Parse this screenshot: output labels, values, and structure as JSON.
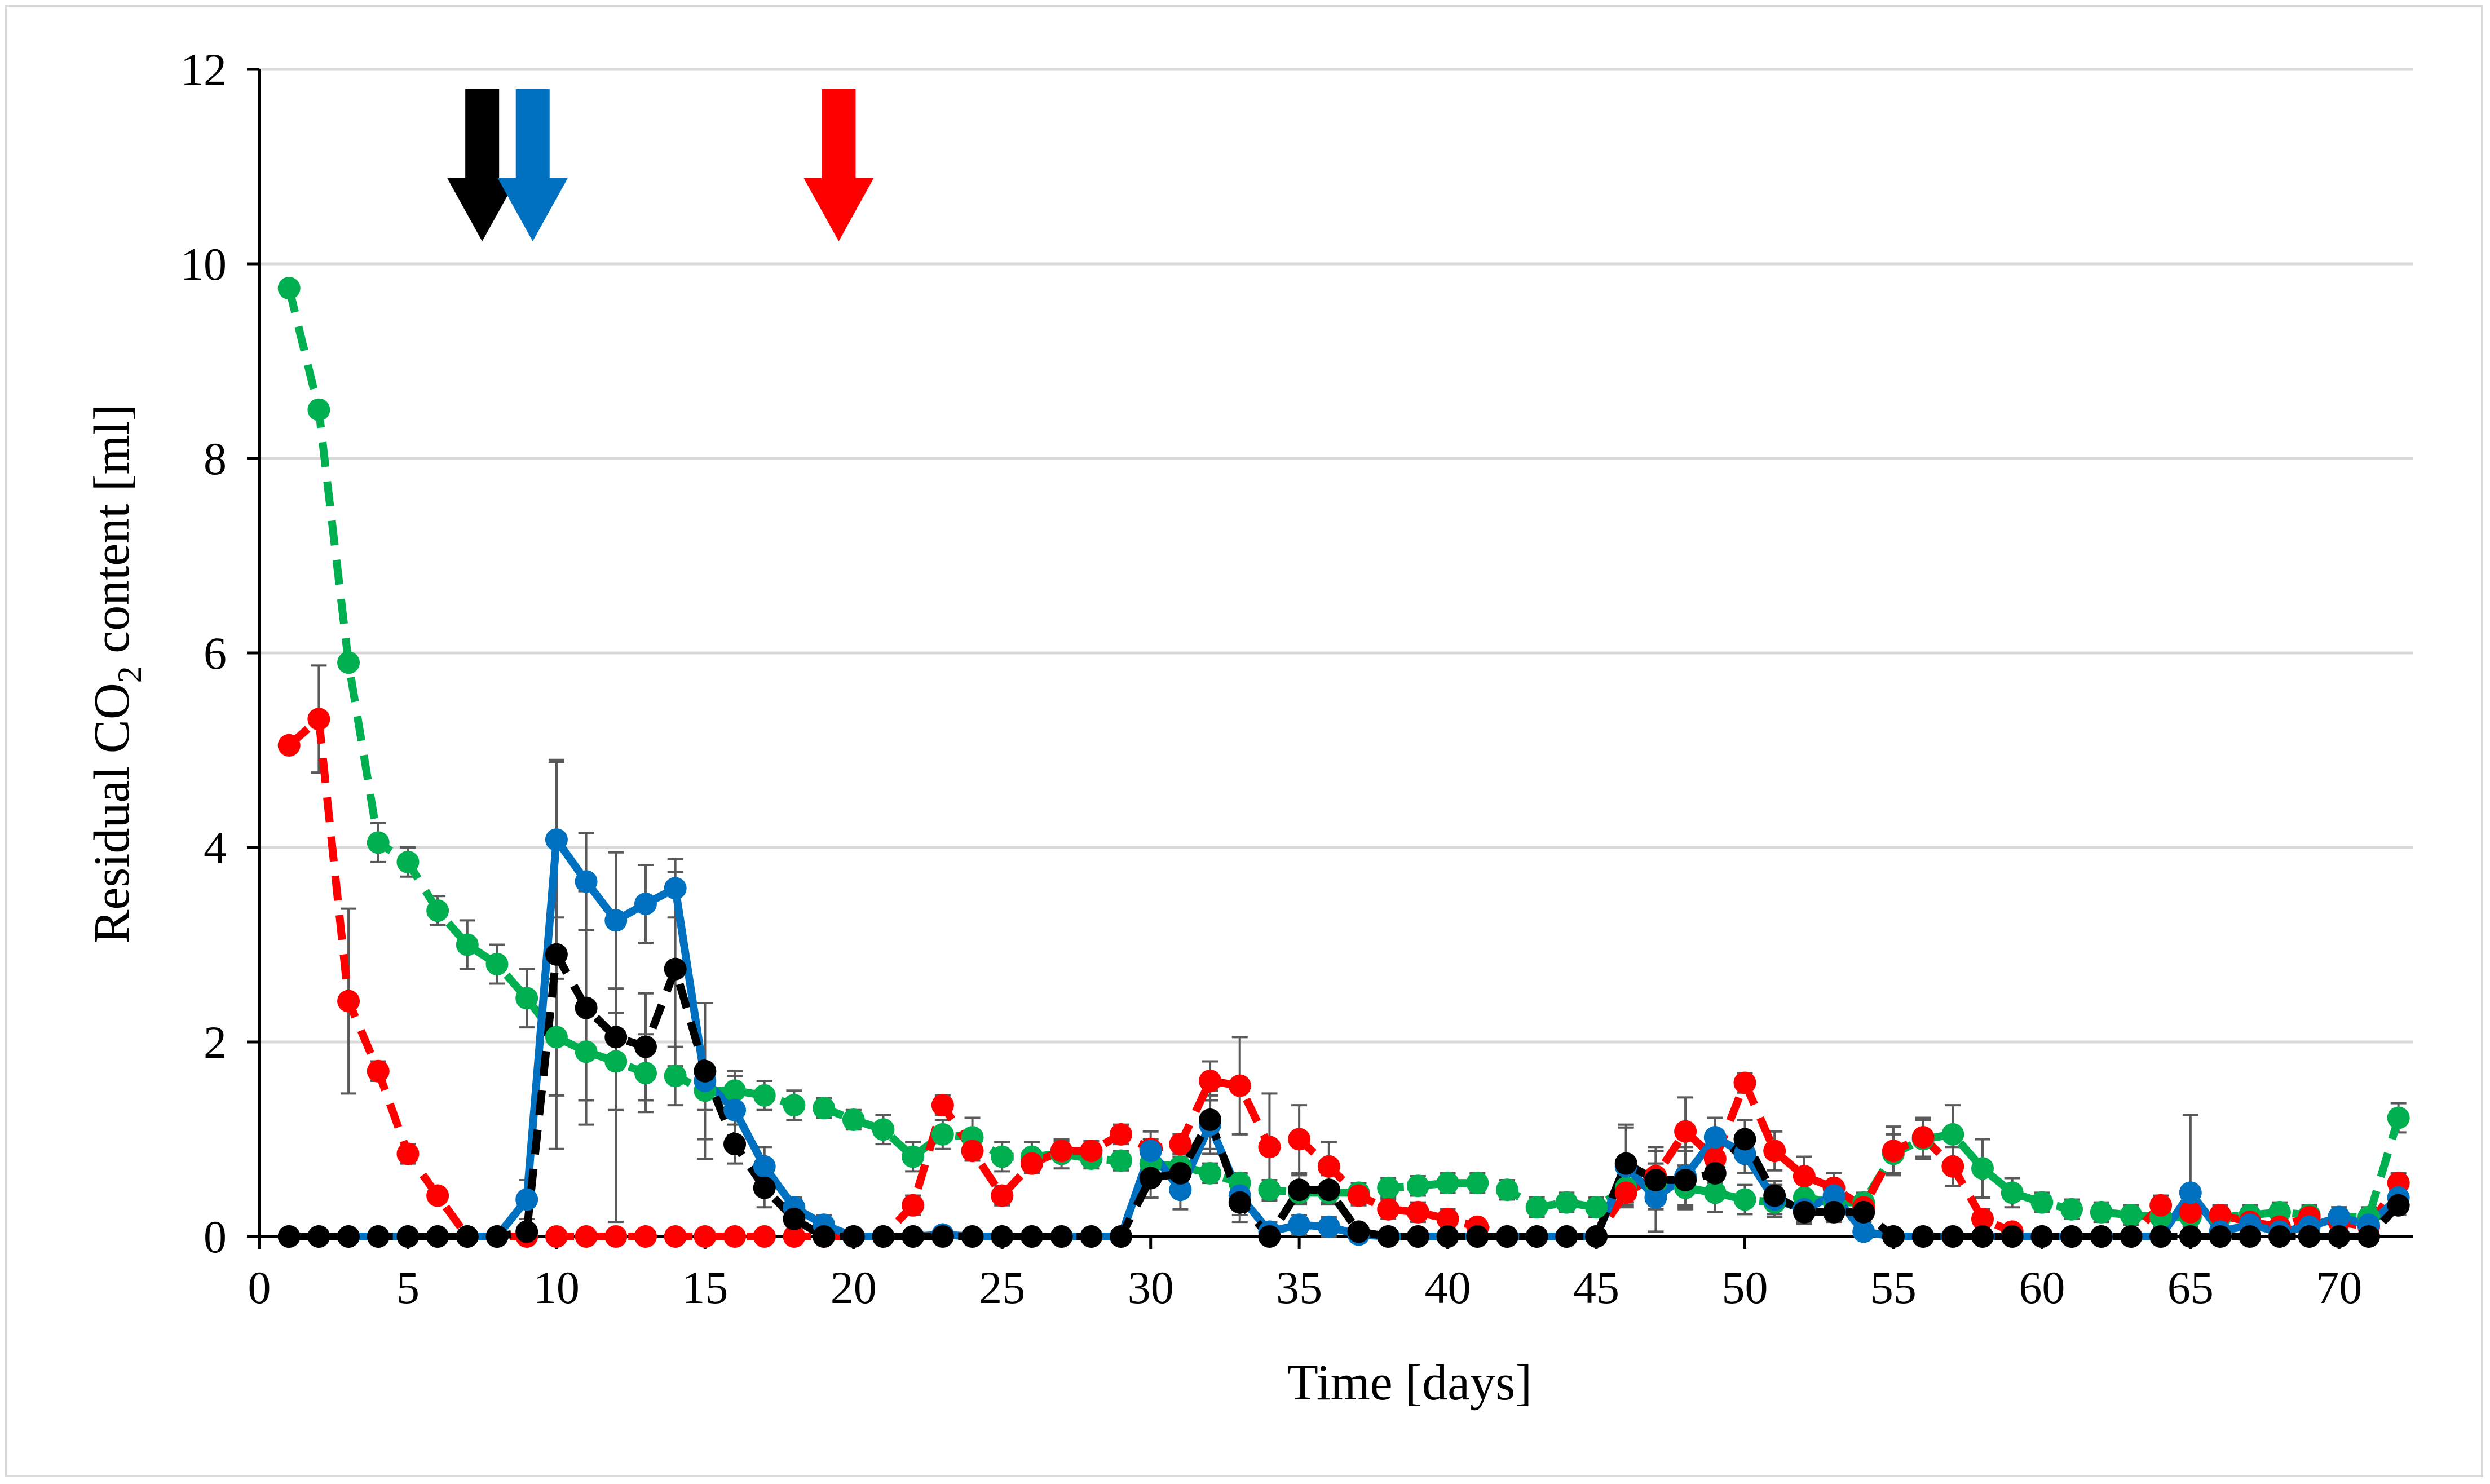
{
  "chart_data": {
    "type": "line",
    "title": "",
    "xlabel": "Time [days]",
    "ylabel_parts": {
      "prefix": "Residual CO",
      "subscript": "2",
      "suffix": " content [ml]"
    },
    "xlim": [
      0,
      72.5
    ],
    "ylim": [
      0,
      12
    ],
    "x_ticks": [
      0,
      5,
      10,
      15,
      20,
      25,
      30,
      35,
      40,
      45,
      50,
      55,
      60,
      65,
      70
    ],
    "y_ticks": [
      0,
      2,
      4,
      6,
      8,
      10,
      12
    ],
    "grid": "horizontal",
    "annotations": [
      {
        "type": "arrow",
        "x_day": 7.5,
        "color": "#000000",
        "name": "black-arrow"
      },
      {
        "type": "arrow",
        "x_day": 9.2,
        "color": "#0070c0",
        "name": "blue-arrow"
      },
      {
        "type": "arrow",
        "x_day": 19.5,
        "color": "#ff0000",
        "name": "red-arrow"
      }
    ],
    "series": [
      {
        "name": "green",
        "color": "#00b050",
        "dash": true,
        "x": [
          1,
          2,
          3,
          4,
          5,
          6,
          7,
          8,
          9,
          10,
          11,
          12,
          13,
          14,
          15,
          16,
          17,
          18,
          19,
          20,
          21,
          22,
          23,
          24,
          25,
          26,
          27,
          28,
          29,
          30,
          31,
          32,
          33,
          34,
          35,
          36,
          37,
          38,
          39,
          40,
          41,
          42,
          43,
          44,
          45,
          46,
          47,
          48,
          49,
          50,
          51,
          52,
          53,
          54,
          55,
          56,
          57,
          58,
          59,
          60,
          61,
          62,
          63,
          64,
          65,
          66,
          67,
          68,
          69,
          70,
          71,
          72
        ],
        "values": [
          9.75,
          8.5,
          5.9,
          4.05,
          3.85,
          3.35,
          3.0,
          2.8,
          2.45,
          2.05,
          1.9,
          1.8,
          1.68,
          1.65,
          1.5,
          1.5,
          1.45,
          1.35,
          1.32,
          1.2,
          1.1,
          0.82,
          1.05,
          1.02,
          0.82,
          0.82,
          0.85,
          0.8,
          0.78,
          0.75,
          0.72,
          0.65,
          0.55,
          0.48,
          0.45,
          0.45,
          0.45,
          0.5,
          0.52,
          0.55,
          0.55,
          0.48,
          0.3,
          0.35,
          0.3,
          0.5,
          0.55,
          0.5,
          0.45,
          0.38,
          0.35,
          0.4,
          0.35,
          0.35,
          0.85,
          1.0,
          1.05,
          0.7,
          0.45,
          0.35,
          0.28,
          0.25,
          0.22,
          0.2,
          0.2,
          0.2,
          0.22,
          0.25,
          0.22,
          0.2,
          0.2,
          1.22
        ],
        "errors": [
          0,
          0,
          0,
          0.2,
          0.15,
          0.15,
          0.25,
          0.2,
          0.3,
          0.6,
          0.5,
          0.5,
          0.4,
          0.3,
          0.2,
          0.15,
          0.15,
          0.15,
          0.1,
          0.1,
          0.15,
          0.15,
          0.15,
          0.2,
          0.15,
          0.15,
          0.15,
          0.1,
          0.1,
          0.1,
          0.1,
          0.1,
          0.1,
          0.1,
          0.1,
          0.1,
          0.1,
          0.1,
          0.1,
          0.1,
          0.1,
          0.1,
          0.1,
          0.1,
          0.1,
          0.2,
          0.2,
          0.2,
          0.2,
          0.15,
          0.15,
          0.15,
          0.15,
          0.1,
          0.2,
          0.2,
          0.3,
          0.3,
          0.15,
          0.1,
          0.1,
          0.1,
          0.1,
          0.1,
          0.1,
          0.1,
          0.1,
          0.1,
          0.1,
          0.1,
          0.1,
          0.15
        ]
      },
      {
        "name": "red",
        "color": "#ff0000",
        "dash": true,
        "x": [
          1,
          2,
          3,
          4,
          5,
          6,
          7,
          8,
          9,
          10,
          11,
          12,
          13,
          14,
          15,
          16,
          17,
          18,
          19,
          20,
          21,
          22,
          23,
          24,
          25,
          26,
          27,
          28,
          29,
          30,
          31,
          32,
          33,
          34,
          35,
          36,
          37,
          38,
          39,
          40,
          41,
          42,
          43,
          44,
          45,
          46,
          47,
          48,
          49,
          50,
          51,
          52,
          53,
          54,
          55,
          56,
          57,
          58,
          59,
          60,
          61,
          62,
          63,
          64,
          65,
          66,
          67,
          68,
          69,
          70,
          71,
          72
        ],
        "values": [
          5.05,
          5.32,
          2.42,
          1.7,
          0.85,
          0.42,
          0,
          0,
          0,
          0,
          0,
          0,
          0,
          0,
          0,
          0,
          0,
          0,
          0,
          0,
          0,
          0.32,
          1.35,
          0.88,
          0.42,
          0.75,
          0.88,
          0.88,
          1.05,
          0.9,
          0.95,
          1.6,
          1.55,
          0.92,
          1.0,
          0.72,
          0.42,
          0.28,
          0.25,
          0.18,
          0.1,
          0,
          0,
          0,
          0,
          0.45,
          0.62,
          1.08,
          0.8,
          1.58,
          0.88,
          0.62,
          0.5,
          0.3,
          0.88,
          1.02,
          0.72,
          0.18,
          0.05,
          0,
          0,
          0,
          0,
          0.32,
          0.25,
          0.22,
          0.15,
          0.1,
          0.2,
          0.15,
          0.1,
          0.55
        ],
        "errors": [
          0,
          0.55,
          0.95,
          0.1,
          0.1,
          0.05,
          0,
          0,
          0,
          0,
          0,
          0,
          0,
          0,
          0,
          0,
          0,
          0,
          0,
          0,
          0,
          0.1,
          0.1,
          0.1,
          0.1,
          0.1,
          0.1,
          0.1,
          0.1,
          0.1,
          0.1,
          0.2,
          0.5,
          0.55,
          0.35,
          0.25,
          0.1,
          0.1,
          0.1,
          0.1,
          0.05,
          0,
          0,
          0,
          0,
          0.1,
          0.3,
          0.35,
          0.25,
          0.1,
          0.2,
          0.2,
          0.15,
          0.1,
          0.25,
          0.2,
          0.2,
          0.1,
          0.05,
          0,
          0,
          0,
          0,
          0.1,
          0.1,
          0.1,
          0.1,
          0.1,
          0.1,
          0.1,
          0.1,
          0.1
        ]
      },
      {
        "name": "blue",
        "color": "#0070c0",
        "dash": false,
        "x": [
          1,
          2,
          3,
          4,
          5,
          6,
          7,
          8,
          9,
          10,
          11,
          12,
          13,
          14,
          15,
          16,
          17,
          18,
          19,
          20,
          21,
          22,
          23,
          24,
          25,
          26,
          27,
          28,
          29,
          30,
          31,
          32,
          33,
          34,
          35,
          36,
          37,
          38,
          39,
          40,
          41,
          42,
          43,
          44,
          45,
          46,
          47,
          48,
          49,
          50,
          51,
          52,
          53,
          54,
          55,
          56,
          57,
          58,
          59,
          60,
          61,
          62,
          63,
          64,
          65,
          66,
          67,
          68,
          69,
          70,
          71,
          72
        ],
        "values": [
          0,
          0,
          0,
          0,
          0,
          0,
          0,
          0,
          0.38,
          4.08,
          3.65,
          3.25,
          3.42,
          3.58,
          1.6,
          1.3,
          0.72,
          0.3,
          0.12,
          0,
          0,
          0,
          0.02,
          0,
          0,
          0,
          0,
          0,
          0,
          0.88,
          0.48,
          1.15,
          0.42,
          0.05,
          0.12,
          0.1,
          0.02,
          0,
          0,
          0,
          0,
          0,
          0,
          0,
          0,
          0.72,
          0.4,
          0.62,
          1.02,
          0.85,
          0.38,
          0.28,
          0.42,
          0.05,
          0,
          0,
          0,
          0,
          0,
          0,
          0,
          0,
          0,
          0,
          0.45,
          0.05,
          0.12,
          0.05,
          0.1,
          0.2,
          0.12,
          0.4
        ],
        "errors": [
          0,
          0,
          0,
          0,
          0,
          0,
          0,
          0,
          0.2,
          0.8,
          0.5,
          0.7,
          0.4,
          0.3,
          0.8,
          0.4,
          0.2,
          0.1,
          0.1,
          0,
          0,
          0,
          0,
          0,
          0,
          0,
          0,
          0,
          0,
          0.2,
          0.2,
          0.3,
          0.2,
          0.1,
          0.1,
          0.1,
          0,
          0,
          0,
          0,
          0,
          0,
          0,
          0,
          0,
          0.4,
          0.35,
          0.3,
          0.2,
          0.2,
          0.15,
          0.15,
          0.15,
          0.05,
          0,
          0,
          0,
          0,
          0,
          0,
          0,
          0,
          0,
          0,
          0.8,
          0.2,
          0.15,
          0.1,
          0.1,
          0.1,
          0.1,
          0.1
        ]
      },
      {
        "name": "black",
        "color": "#000000",
        "dash": true,
        "x": [
          1,
          2,
          3,
          4,
          5,
          6,
          7,
          8,
          9,
          10,
          11,
          12,
          13,
          14,
          15,
          16,
          17,
          18,
          19,
          20,
          21,
          22,
          23,
          24,
          25,
          26,
          27,
          28,
          29,
          30,
          31,
          32,
          33,
          34,
          35,
          36,
          37,
          38,
          39,
          40,
          41,
          42,
          43,
          44,
          45,
          46,
          47,
          48,
          49,
          50,
          51,
          52,
          53,
          54,
          55,
          56,
          57,
          58,
          59,
          60,
          61,
          62,
          63,
          64,
          65,
          66,
          67,
          68,
          69,
          70,
          71,
          72
        ],
        "values": [
          0,
          0,
          0,
          0,
          0,
          0,
          0,
          0,
          0.05,
          2.9,
          2.35,
          2.05,
          1.95,
          2.75,
          1.7,
          0.95,
          0.5,
          0.18,
          0,
          0,
          0,
          0,
          0,
          0,
          0,
          0,
          0,
          0,
          0,
          0.6,
          0.65,
          1.2,
          0.35,
          0,
          0.48,
          0.48,
          0.05,
          0,
          0,
          0,
          0,
          0,
          0,
          0,
          0,
          0.75,
          0.58,
          0.58,
          0.65,
          1.0,
          0.42,
          0.25,
          0.25,
          0.25,
          0,
          0,
          0,
          0,
          0,
          0,
          0,
          0,
          0,
          0,
          0,
          0,
          0,
          0,
          0,
          0,
          0,
          0.32
        ],
        "errors": [
          0,
          0,
          0,
          0,
          0,
          0,
          0,
          0,
          0,
          2.0,
          1.2,
          1.9,
          0.55,
          1.0,
          0.7,
          0.2,
          0.2,
          0.1,
          0,
          0,
          0,
          0,
          0,
          0,
          0,
          0,
          0,
          0,
          0,
          0.2,
          0.2,
          0.3,
          0.2,
          0,
          0.15,
          0.15,
          0,
          0,
          0,
          0,
          0,
          0,
          0,
          0,
          0,
          0.4,
          0.3,
          0.3,
          0.2,
          0.2,
          0.15,
          0.1,
          0.1,
          0.1,
          0,
          0,
          0,
          0,
          0,
          0,
          0,
          0,
          0,
          0,
          0,
          0,
          0,
          0,
          0,
          0,
          0,
          0.1
        ]
      }
    ]
  }
}
